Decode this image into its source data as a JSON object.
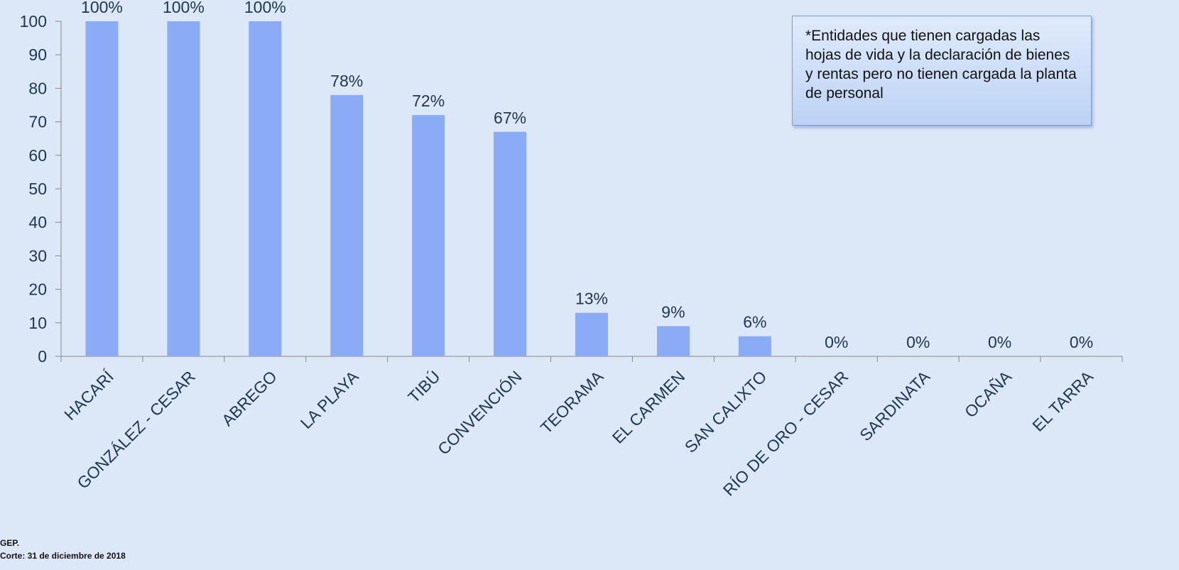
{
  "chart_data": {
    "type": "bar",
    "categories": [
      "HACARÍ",
      "GONZÁLEZ - CESAR",
      "ABREGO",
      "LA PLAYA",
      "TIBÚ",
      "CONVENCIÓN",
      "TEORAMA",
      "EL CARMEN",
      "SAN CALIXTO",
      "RÍO DE ORO - CESAR",
      "SARDINATA",
      "OCAÑA",
      "EL TARRA"
    ],
    "values": [
      100,
      100,
      100,
      78,
      72,
      67,
      13,
      9,
      6,
      0,
      0,
      0,
      0
    ],
    "data_labels": [
      "100%",
      "100%",
      "100%",
      "78%",
      "72%",
      "67%",
      "13%",
      "9%",
      "6%",
      "0%",
      "0%",
      "0%",
      "0%"
    ],
    "ylim": [
      0,
      100
    ],
    "yticks": [
      0,
      10,
      20,
      30,
      40,
      50,
      60,
      70,
      80,
      90,
      100
    ],
    "grid": false,
    "bar_color": "#8aabf5"
  },
  "note": {
    "text": "*Entidades que tienen cargadas las hojas de vida y la declaración de bienes y rentas pero no tienen cargada la planta de personal"
  },
  "footer": {
    "source": "GEP.",
    "cutoff": "Corte: 31 de diciembre de 2018"
  }
}
